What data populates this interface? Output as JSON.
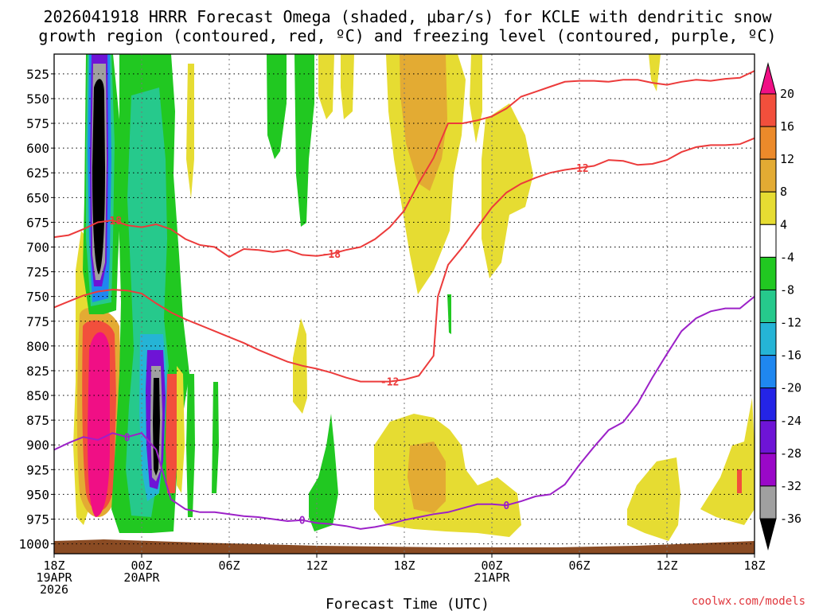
{
  "chart_data": {
    "type": "heatmap",
    "title_line1": "2026041918 HRRR Forecast Omega (shaded, μbar/s) for KCLE with dendritic snow",
    "title_line2": "growth region (contoured, red, ºC) and freezing level (contoured, purple, ºC)",
    "xlabel": "Forecast Time (UTC)",
    "credit": "coolwx.com/models",
    "x_range_hours": [
      0,
      48
    ],
    "y_range_mb": [
      1010,
      505
    ],
    "y_ticks": [
      "525",
      "550",
      "575",
      "600",
      "625",
      "650",
      "675",
      "700",
      "725",
      "750",
      "775",
      "800",
      "825",
      "850",
      "875",
      "900",
      "925",
      "950",
      "975",
      "1000"
    ],
    "x_ticks": [
      {
        "hour": 0,
        "lines": [
          "18Z",
          "19APR",
          "2026"
        ]
      },
      {
        "hour": 6,
        "lines": [
          "00Z",
          "20APR"
        ]
      },
      {
        "hour": 12,
        "lines": [
          "06Z"
        ]
      },
      {
        "hour": 18,
        "lines": [
          "12Z"
        ]
      },
      {
        "hour": 24,
        "lines": [
          "18Z"
        ]
      },
      {
        "hour": 30,
        "lines": [
          "00Z",
          "21APR"
        ]
      },
      {
        "hour": 36,
        "lines": [
          "06Z"
        ]
      },
      {
        "hour": 42,
        "lines": [
          "12Z"
        ]
      },
      {
        "hour": 48,
        "lines": [
          "18Z"
        ]
      }
    ],
    "colorbar": {
      "unit": "μbar/s",
      "labels": [
        "20",
        "16",
        "12",
        "8",
        "4",
        "-4",
        "-8",
        "-12",
        "-16",
        "-20",
        "-24",
        "-28",
        "-32",
        "-36"
      ],
      "colors": [
        "#f00f85",
        "#f24f3c",
        "#ec8a2a",
        "#e3ab33",
        "#e6dc32",
        "#ffffff",
        "#21c821",
        "#26c98c",
        "#25b4d6",
        "#1f87f0",
        "#2424e6",
        "#6e14d6",
        "#9a08c8",
        "#a0a0a0",
        "#000000"
      ]
    },
    "contours": {
      "dgz_red": [
        {
          "label": "-18",
          "color": "#ec3b3b",
          "points": [
            [
              0,
              690
            ],
            [
              1,
              688
            ],
            [
              2,
              682
            ],
            [
              3,
              675
            ],
            [
              4,
              673
            ],
            [
              5,
              678
            ],
            [
              6,
              680
            ],
            [
              7,
              677
            ],
            [
              8,
              682
            ],
            [
              9,
              692
            ],
            [
              10,
              698
            ],
            [
              11,
              700
            ],
            [
              12,
              710
            ],
            [
              13,
              702
            ],
            [
              14,
              703
            ],
            [
              15,
              705
            ],
            [
              16,
              703
            ],
            [
              17,
              708
            ],
            [
              18,
              709
            ],
            [
              19,
              707
            ],
            [
              20,
              703
            ],
            [
              21,
              700
            ],
            [
              22,
              692
            ],
            [
              23,
              680
            ],
            [
              24,
              663
            ],
            [
              25,
              635
            ],
            [
              26,
              610
            ],
            [
              27,
              575
            ],
            [
              28,
              575
            ],
            [
              29,
              572
            ],
            [
              30,
              568
            ],
            [
              31,
              560
            ],
            [
              32,
              548
            ],
            [
              33,
              543
            ],
            [
              34,
              538
            ],
            [
              35,
              533
            ],
            [
              36,
              532
            ],
            [
              37,
              532
            ],
            [
              38,
              533
            ],
            [
              39,
              531
            ],
            [
              40,
              531
            ],
            [
              41,
              534
            ],
            [
              42,
              536
            ],
            [
              43,
              533
            ],
            [
              44,
              531
            ],
            [
              45,
              532
            ],
            [
              46,
              530
            ],
            [
              47,
              529
            ],
            [
              48,
              522
            ]
          ]
        },
        {
          "label": "-12",
          "color": "#ec3b3b",
          "points": [
            [
              0,
              761
            ],
            [
              1,
              755
            ],
            [
              2,
              749
            ],
            [
              3,
              745
            ],
            [
              4,
              743
            ],
            [
              5,
              744
            ],
            [
              6,
              747
            ],
            [
              7,
              757
            ],
            [
              8,
              766
            ],
            [
              9,
              773
            ],
            [
              10,
              779
            ],
            [
              11,
              785
            ],
            [
              12,
              791
            ],
            [
              13,
              797
            ],
            [
              14,
              804
            ],
            [
              15,
              810
            ],
            [
              16,
              816
            ],
            [
              17,
              820
            ],
            [
              18,
              823
            ],
            [
              19,
              827
            ],
            [
              20,
              832
            ],
            [
              21,
              836
            ],
            [
              22,
              836
            ],
            [
              23,
              836
            ],
            [
              24,
              834
            ],
            [
              25,
              830
            ],
            [
              26,
              810
            ],
            [
              26.3,
              750
            ],
            [
              27,
              718
            ],
            [
              28,
              700
            ],
            [
              29,
              680
            ],
            [
              30,
              660
            ],
            [
              31,
              645
            ],
            [
              32,
              636
            ],
            [
              33,
              630
            ],
            [
              34,
              625
            ],
            [
              35,
              622
            ],
            [
              36,
              620
            ],
            [
              37,
              618
            ],
            [
              38,
              612
            ],
            [
              39,
              613
            ],
            [
              40,
              617
            ],
            [
              41,
              616
            ],
            [
              42,
              612
            ],
            [
              43,
              604
            ],
            [
              44,
              599
            ],
            [
              45,
              597
            ],
            [
              46,
              597
            ],
            [
              47,
              596
            ],
            [
              48,
              590
            ]
          ]
        }
      ],
      "freezing_purple": [
        {
          "label": "0",
          "color": "#9c21c8",
          "points": [
            [
              0,
              905
            ],
            [
              1,
              898
            ],
            [
              2,
              892
            ],
            [
              3,
              895
            ],
            [
              4,
              888
            ],
            [
              5,
              892
            ],
            [
              6,
              888
            ],
            [
              7,
              905
            ],
            [
              8,
              955
            ],
            [
              9,
              965
            ],
            [
              10,
              968
            ],
            [
              11,
              968
            ],
            [
              12,
              970
            ],
            [
              13,
              972
            ],
            [
              14,
              973
            ],
            [
              15,
              975
            ],
            [
              16,
              977
            ],
            [
              17,
              976
            ],
            [
              18,
              979
            ],
            [
              19,
              980
            ],
            [
              20,
              982
            ],
            [
              21,
              985
            ],
            [
              22,
              983
            ],
            [
              23,
              980
            ],
            [
              24,
              976
            ],
            [
              25,
              973
            ],
            [
              26,
              970
            ],
            [
              27,
              968
            ],
            [
              28,
              964
            ],
            [
              29,
              960
            ],
            [
              30,
              960
            ],
            [
              31,
              961
            ],
            [
              32,
              957
            ],
            [
              33,
              952
            ],
            [
              34,
              950
            ],
            [
              35,
              940
            ],
            [
              36,
              920
            ],
            [
              37,
              902
            ],
            [
              38,
              885
            ],
            [
              39,
              877
            ],
            [
              40,
              858
            ],
            [
              41,
              832
            ],
            [
              42,
              808
            ],
            [
              43,
              785
            ],
            [
              44,
              772
            ],
            [
              45,
              765
            ],
            [
              46,
              762
            ],
            [
              47,
              762
            ],
            [
              48,
              750
            ]
          ]
        }
      ]
    }
  }
}
